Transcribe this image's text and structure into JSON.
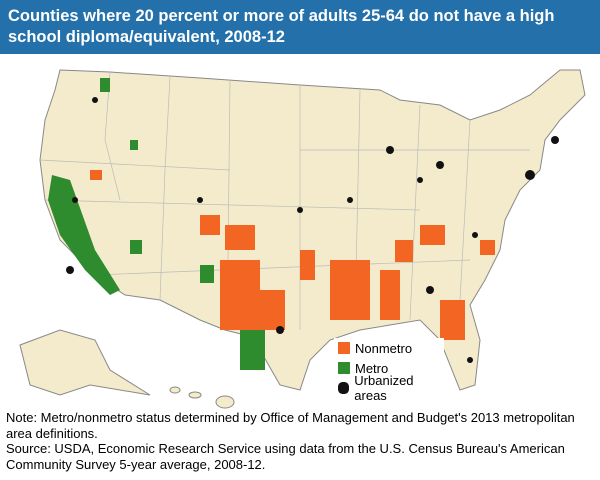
{
  "header": {
    "title": "Counties where 20 percent or more of adults 25-64 do not have a high school diploma/equivalent, 2008-12"
  },
  "legend": {
    "items": [
      {
        "label": "Nonmetro",
        "color": "#f26522"
      },
      {
        "label": "Metro",
        "color": "#2e8b2e"
      },
      {
        "label": "Urbanized areas",
        "color": "#111111"
      }
    ]
  },
  "notes": {
    "note": "Note: Metro/nonmetro status determined by Office of Management and Budget's 2013 metropolitan area definitions.",
    "source": "Source: USDA, Economic Research Service using data from the U.S. Census Bureau's American Community Survey 5-year average, 2008-12."
  }
}
